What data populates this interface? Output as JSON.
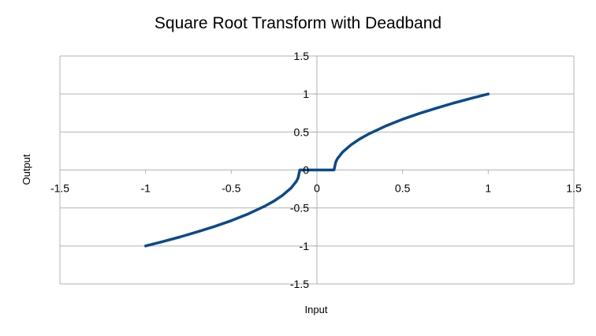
{
  "chart_data": {
    "type": "line",
    "title": "Square Root Transform with Deadband",
    "xlabel": "Input",
    "ylabel": "Output",
    "xlim": [
      -1.5,
      1.5
    ],
    "ylim": [
      -1.5,
      1.5
    ],
    "x_ticks": [
      -1.5,
      -1,
      -0.5,
      0,
      0.5,
      1,
      1.5
    ],
    "x_tick_labels": [
      "-1.5",
      "-1",
      "-0.5",
      "0",
      "0.5",
      "1",
      "1.5"
    ],
    "y_ticks": [
      -1.5,
      -1,
      -0.5,
      0,
      0.5,
      1,
      1.5
    ],
    "y_tick_labels": [
      "-1.5",
      "-1",
      "-0.5",
      "0",
      "0.5",
      "1",
      "1.5"
    ],
    "grid": true,
    "legend": "none",
    "series": [
      {
        "color": "#0b4a8a",
        "x": [
          -1,
          -0.9,
          -0.8,
          -0.7,
          -0.6,
          -0.5,
          -0.4,
          -0.3,
          -0.25,
          -0.2,
          -0.15,
          -0.12,
          -0.11,
          -0.1,
          0,
          0.1,
          0.11,
          0.12,
          0.15,
          0.2,
          0.25,
          0.3,
          0.4,
          0.5,
          0.6,
          0.7,
          0.8,
          0.9,
          1
        ],
        "y": [
          -1,
          -0.943,
          -0.882,
          -0.816,
          -0.745,
          -0.667,
          -0.577,
          -0.471,
          -0.408,
          -0.333,
          -0.236,
          -0.149,
          -0.105,
          0,
          0,
          0,
          0.105,
          0.149,
          0.236,
          0.333,
          0.408,
          0.471,
          0.577,
          0.667,
          0.745,
          0.816,
          0.882,
          0.943,
          1
        ]
      }
    ]
  }
}
